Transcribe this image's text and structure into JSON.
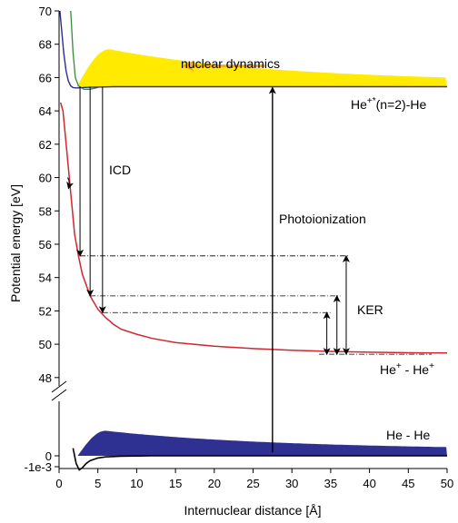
{
  "chart_data": {
    "type": "line",
    "xlabel": "Internuclear distance [Å]",
    "ylabel": "Potential energy [eV]",
    "x_ticks": [
      0,
      5,
      10,
      15,
      20,
      25,
      30,
      35,
      40,
      45,
      50
    ],
    "xlim": [
      0,
      50
    ],
    "upper_panel": {
      "ylim": [
        47.5,
        70
      ],
      "y_ticks": [
        48,
        50,
        52,
        54,
        56,
        58,
        60,
        62,
        64,
        66,
        68,
        70
      ]
    },
    "lower_panel": {
      "y_ticks": [
        0,
        -0.001
      ],
      "y_tick_labels": [
        "0",
        "-1e-3"
      ]
    },
    "series": [
      {
        "name": "He+* (n=2)-He",
        "color": "#2b2e8f",
        "x": [
          0.1,
          0.3,
          0.6,
          0.9,
          1.2,
          1.5,
          1.8,
          2.1,
          2.5,
          3,
          4,
          5,
          7,
          10,
          15,
          20,
          30,
          40,
          50
        ],
        "y": [
          70,
          69,
          67.5,
          66.4,
          65.8,
          65.5,
          65.4,
          65.38,
          65.38,
          65.4,
          65.42,
          65.43,
          65.45,
          65.45,
          65.45,
          65.45,
          65.45,
          65.45,
          65.45
        ]
      },
      {
        "name": "He+ - He+",
        "color": "#d22630",
        "x": [
          0.2,
          0.5,
          1,
          1.5,
          2,
          2.5,
          3,
          4,
          5,
          6,
          7,
          8,
          10,
          12,
          15,
          20,
          25,
          30,
          35,
          40,
          45,
          50
        ],
        "y": [
          64.5,
          64,
          61.6,
          59.1,
          56.6,
          55.3,
          54.2,
          52.9,
          52.1,
          51.6,
          51.2,
          50.9,
          50.6,
          50.35,
          50.1,
          49.88,
          49.74,
          49.64,
          49.57,
          49.52,
          49.49,
          49.47
        ]
      },
      {
        "name": "He - He",
        "color": "#000000",
        "x": [
          1.8,
          2.2,
          2.6,
          3,
          3.5,
          4,
          5,
          6,
          8,
          12,
          20,
          50
        ],
        "y": [
          0.0007,
          -0.0007,
          -0.0013,
          -0.0011,
          -0.0007,
          -0.00045,
          -0.0002,
          -0.0001,
          -3e-05,
          0,
          0,
          0
        ]
      }
    ],
    "wavepackets": [
      {
        "name": "He - He",
        "color": "#2e3192",
        "panel": "lower",
        "range_x": [
          2.4,
          50
        ],
        "peak_x": 6,
        "peak_height": 0.0023,
        "tail_height": 0.0008
      },
      {
        "name": "nuclear dynamics",
        "color": "#ffea00",
        "panel": "upper",
        "range_x": [
          2.3,
          50
        ],
        "base_y": 65.45,
        "peak_x": 6.5,
        "peak_y": 67.7,
        "tail_y": 66
      }
    ],
    "annotations": {
      "icd": "ICD",
      "photoionization": "Photoionization",
      "kin_energy": "KER",
      "dynamics": "nuclear dynamics",
      "label_excited": "He",
      "label_excited_sup": "+*",
      "label_excited_rest": "(n=2)-He",
      "label_ion": "He",
      "label_ion_sup1": "+",
      "label_ion_mid": " - He",
      "label_ion_sup2": "+",
      "label_ground": "He - He"
    },
    "icd_transitions": [
      {
        "x": 2.7,
        "from_y": 65.45,
        "to_y": 55.3
      },
      {
        "x": 4.0,
        "from_y": 65.45,
        "to_y": 52.9
      },
      {
        "x": 5.6,
        "from_y": 65.45,
        "to_y": 51.9
      }
    ],
    "ker_arrows": [
      {
        "x": 37,
        "top_y": 55.3,
        "from_x": 2.7
      },
      {
        "x": 35.8,
        "top_y": 52.9,
        "from_x": 4.0
      },
      {
        "x": 34.5,
        "top_y": 51.9,
        "from_x": 5.6
      }
    ],
    "ker_base_y": 49.4,
    "photoionization_arrow_x": 27.5
  },
  "colors": {
    "excited": "#2b2e8f",
    "ion": "#d22630",
    "ground_fill": "#2e3192",
    "excited_fill": "#ffea00",
    "dynamics_arrow": "#f7a51c"
  }
}
